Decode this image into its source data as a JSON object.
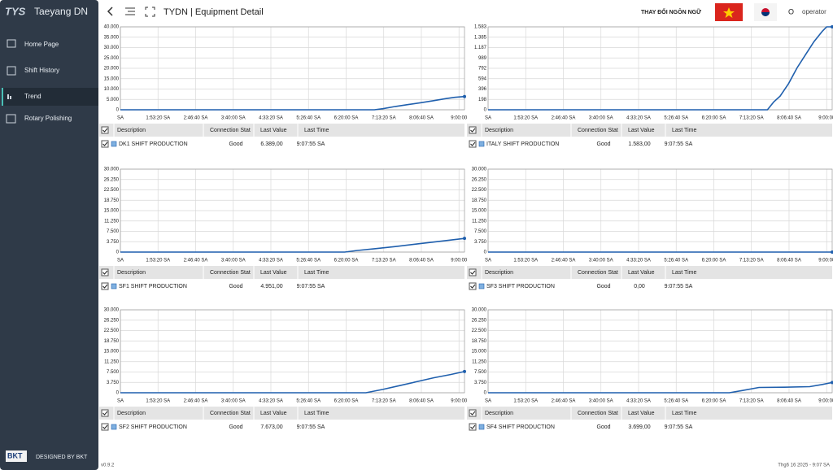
{
  "app": {
    "logo": "TYS",
    "title": "Taeyang DN",
    "nav": [
      "Home Page",
      "Shift History",
      "Trend",
      "Rotary Polishing"
    ],
    "footer_logo": "BKT",
    "footer": "DESIGNED BY BKT",
    "version": "v0.9.2"
  },
  "header": {
    "title": "TYDN | Equipment Detail",
    "language": "THAY ĐỔI NGÔN NGỮ",
    "user_icon": "O",
    "user": "operator"
  },
  "status": "Thg6 16 2025 - 9:07 SA",
  "table_headers": [
    "Description",
    "Connection Stat",
    "Last Value",
    "Last Time"
  ],
  "tables": [
    {
      "row": [
        "Good",
        "6.389,00",
        "9:07:55 SA"
      ]
    },
    {
      "row": [
        "Good",
        "1.583,00",
        "9:07:55 SA"
      ]
    },
    {
      "row": [
        "Good",
        "4.951,00",
        "9:07:55 SA"
      ]
    },
    {
      "row": [
        "Good",
        "0,00",
        "9:07:55 SA"
      ]
    },
    {
      "row": [
        "Good",
        "7.673,00",
        "9:07:55 SA"
      ]
    },
    {
      "row": [
        "Good",
        "3.699,00",
        "9:07:55 SA"
      ]
    }
  ],
  "chart_data": [
    {
      "type": "line",
      "grid": true,
      "xlim": [
        1,
        9.13
      ],
      "ylim": [
        0,
        40000
      ],
      "xticks": [
        {
          "value": 1,
          "label": "SA"
        },
        {
          "value": 1.8889,
          "label": "1:53:20 SA"
        },
        {
          "value": 2.7778,
          "label": "2:46:40 SA"
        },
        {
          "value": 3.6667,
          "label": "3:40:00 SA"
        },
        {
          "value": 4.5556,
          "label": "4:33:20 SA"
        },
        {
          "value": 5.4444,
          "label": "5:26:40 SA"
        },
        {
          "value": 6.3333,
          "label": "6:20:00 SA"
        },
        {
          "value": 7.2222,
          "label": "7:13:20 SA"
        },
        {
          "value": 8.1111,
          "label": "8:06:40 SA"
        },
        {
          "value": 9,
          "label": "9:00:00"
        }
      ],
      "yticks": [
        0,
        {
          "value": 5000,
          "label": "5.000"
        },
        {
          "value": 10000,
          "label": "10.000"
        },
        {
          "value": 15000,
          "label": "15.000"
        },
        {
          "value": 20000,
          "label": "20.000"
        },
        {
          "value": 25000,
          "label": "25.000"
        },
        {
          "value": 30000,
          "label": "30.000"
        },
        {
          "value": 35000,
          "label": "35.000"
        },
        {
          "value": 40000,
          "label": "40.000"
        }
      ],
      "series": [
        {
          "name": "DK1 SHIFT PRODUCTION",
          "color": "#1f5fad",
          "x": [
            1,
            7.0,
            7.2,
            7.5,
            7.8,
            8.1,
            8.4,
            8.7,
            8.9,
            9.13
          ],
          "values": [
            0,
            0,
            500,
            1600,
            2500,
            3400,
            4400,
            5400,
            6000,
            6389
          ]
        }
      ]
    },
    {
      "type": "line",
      "grid": true,
      "xlim": [
        1,
        9.13
      ],
      "ylim": [
        0,
        1583
      ],
      "xticks": [
        {
          "value": 1,
          "label": "SA"
        },
        {
          "value": 1.8889,
          "label": "1:53:20 SA"
        },
        {
          "value": 2.7778,
          "label": "2:46:40 SA"
        },
        {
          "value": 3.6667,
          "label": "3:40:00 SA"
        },
        {
          "value": 4.5556,
          "label": "4:33:20 SA"
        },
        {
          "value": 5.4444,
          "label": "5:26:40 SA"
        },
        {
          "value": 6.3333,
          "label": "6:20:00 SA"
        },
        {
          "value": 7.2222,
          "label": "7:13:20 SA"
        },
        {
          "value": 8.1111,
          "label": "8:06:40 SA"
        },
        {
          "value": 9,
          "label": "9:00:00"
        }
      ],
      "yticks": [
        0,
        198,
        396,
        594,
        792,
        989,
        {
          "value": 1187,
          "label": "1.187"
        },
        {
          "value": 1385,
          "label": "1.385"
        },
        {
          "value": 1583,
          "label": "1.583"
        }
      ],
      "series": [
        {
          "name": "ITALY SHIFT PRODUCTION",
          "color": "#1f5fad",
          "x": [
            1,
            7.6,
            7.75,
            7.9,
            8.1,
            8.3,
            8.5,
            8.7,
            8.9,
            9.0,
            9.13
          ],
          "values": [
            0,
            0,
            150,
            260,
            500,
            800,
            1050,
            1300,
            1500,
            1583,
            1583
          ]
        }
      ]
    },
    {
      "type": "line",
      "grid": true,
      "xlim": [
        1,
        9.13
      ],
      "ylim": [
        0,
        30000
      ],
      "xticks": [
        {
          "value": 1,
          "label": "SA"
        },
        {
          "value": 1.8889,
          "label": "1:53:20 SA"
        },
        {
          "value": 2.7778,
          "label": "2:46:40 SA"
        },
        {
          "value": 3.6667,
          "label": "3:40:00 SA"
        },
        {
          "value": 4.5556,
          "label": "4:33:20 SA"
        },
        {
          "value": 5.4444,
          "label": "5:26:40 SA"
        },
        {
          "value": 6.3333,
          "label": "6:20:00 SA"
        },
        {
          "value": 7.2222,
          "label": "7:13:20 SA"
        },
        {
          "value": 8.1111,
          "label": "8:06:40 SA"
        },
        {
          "value": 9,
          "label": "9:00:00"
        }
      ],
      "yticks": [
        0,
        {
          "value": 3750,
          "label": "3.750"
        },
        {
          "value": 7500,
          "label": "7.500"
        },
        {
          "value": 11250,
          "label": "11.250"
        },
        {
          "value": 15000,
          "label": "15.000"
        },
        {
          "value": 18750,
          "label": "18.750"
        },
        {
          "value": 22500,
          "label": "22.500"
        },
        {
          "value": 26250,
          "label": "26.250"
        },
        {
          "value": 30000,
          "label": "30.000"
        }
      ],
      "series": [
        {
          "name": "SF1 SHIFT PRODUCTION",
          "color": "#1f5fad",
          "x": [
            1,
            6.3,
            6.6,
            7.0,
            7.5,
            8.0,
            8.5,
            9.13
          ],
          "values": [
            0,
            0,
            600,
            1200,
            2000,
            2900,
            3800,
            4951
          ]
        }
      ]
    },
    {
      "type": "line",
      "grid": true,
      "xlim": [
        1,
        9.13
      ],
      "ylim": [
        0,
        30000
      ],
      "xticks": [
        {
          "value": 1,
          "label": "SA"
        },
        {
          "value": 1.8889,
          "label": "1:53:20 SA"
        },
        {
          "value": 2.7778,
          "label": "2:46:40 SA"
        },
        {
          "value": 3.6667,
          "label": "3:40:00 SA"
        },
        {
          "value": 4.5556,
          "label": "4:33:20 SA"
        },
        {
          "value": 5.4444,
          "label": "5:26:40 SA"
        },
        {
          "value": 6.3333,
          "label": "6:20:00 SA"
        },
        {
          "value": 7.2222,
          "label": "7:13:20 SA"
        },
        {
          "value": 8.1111,
          "label": "8:06:40 SA"
        },
        {
          "value": 9,
          "label": "9:00:00"
        }
      ],
      "yticks": [
        0,
        {
          "value": 3750,
          "label": "3.750"
        },
        {
          "value": 7500,
          "label": "7.500"
        },
        {
          "value": 11250,
          "label": "11.250"
        },
        {
          "value": 15000,
          "label": "15.000"
        },
        {
          "value": 18750,
          "label": "18.750"
        },
        {
          "value": 22500,
          "label": "22.500"
        },
        {
          "value": 26250,
          "label": "26.250"
        },
        {
          "value": 30000,
          "label": "30.000"
        }
      ],
      "series": [
        {
          "name": "SF3 SHIFT PRODUCTION",
          "color": "#1f5fad",
          "x": [
            1,
            9.13
          ],
          "values": [
            0,
            0
          ]
        }
      ]
    },
    {
      "type": "line",
      "grid": true,
      "xlim": [
        1,
        9.13
      ],
      "ylim": [
        0,
        30000
      ],
      "xticks": [
        {
          "value": 1,
          "label": "SA"
        },
        {
          "value": 1.8889,
          "label": "1:53:20 SA"
        },
        {
          "value": 2.7778,
          "label": "2:46:40 SA"
        },
        {
          "value": 3.6667,
          "label": "3:40:00 SA"
        },
        {
          "value": 4.5556,
          "label": "4:33:20 SA"
        },
        {
          "value": 5.4444,
          "label": "5:26:40 SA"
        },
        {
          "value": 6.3333,
          "label": "6:20:00 SA"
        },
        {
          "value": 7.2222,
          "label": "7:13:20 SA"
        },
        {
          "value": 8.1111,
          "label": "8:06:40 SA"
        },
        {
          "value": 9,
          "label": "9:00:00"
        }
      ],
      "yticks": [
        0,
        {
          "value": 3750,
          "label": "3.750"
        },
        {
          "value": 7500,
          "label": "7.500"
        },
        {
          "value": 11250,
          "label": "11.250"
        },
        {
          "value": 15000,
          "label": "15.000"
        },
        {
          "value": 18750,
          "label": "18.750"
        },
        {
          "value": 22500,
          "label": "22.500"
        },
        {
          "value": 26250,
          "label": "26.250"
        },
        {
          "value": 30000,
          "label": "30.000"
        }
      ],
      "series": [
        {
          "name": "SF2 SHIFT PRODUCTION",
          "color": "#1f5fad",
          "x": [
            1,
            6.8,
            7.2,
            7.6,
            8.0,
            8.4,
            8.8,
            9.13
          ],
          "values": [
            0,
            0,
            1200,
            2600,
            4000,
            5400,
            6600,
            7673
          ]
        }
      ]
    },
    {
      "type": "line",
      "grid": true,
      "xlim": [
        1,
        9.13
      ],
      "ylim": [
        0,
        30000
      ],
      "xticks": [
        {
          "value": 1,
          "label": "SA"
        },
        {
          "value": 1.8889,
          "label": "1:53:20 SA"
        },
        {
          "value": 2.7778,
          "label": "2:46:40 SA"
        },
        {
          "value": 3.6667,
          "label": "3:40:00 SA"
        },
        {
          "value": 4.5556,
          "label": "4:33:20 SA"
        },
        {
          "value": 5.4444,
          "label": "5:26:40 SA"
        },
        {
          "value": 6.3333,
          "label": "6:20:00 SA"
        },
        {
          "value": 7.2222,
          "label": "7:13:20 SA"
        },
        {
          "value": 8.1111,
          "label": "8:06:40 SA"
        },
        {
          "value": 9,
          "label": "9:00:00"
        }
      ],
      "yticks": [
        0,
        {
          "value": 3750,
          "label": "3.750"
        },
        {
          "value": 7500,
          "label": "7.500"
        },
        {
          "value": 11250,
          "label": "11.250"
        },
        {
          "value": 15000,
          "label": "15.000"
        },
        {
          "value": 18750,
          "label": "18.750"
        },
        {
          "value": 22500,
          "label": "22.500"
        },
        {
          "value": 26250,
          "label": "26.250"
        },
        {
          "value": 30000,
          "label": "30.000"
        }
      ],
      "series": [
        {
          "name": "SF4 SHIFT PRODUCTION",
          "color": "#1f5fad",
          "x": [
            1,
            6.7,
            7.0,
            7.4,
            8.0,
            8.6,
            8.9,
            9.13
          ],
          "values": [
            0,
            0,
            800,
            1900,
            2000,
            2200,
            3000,
            3699
          ]
        }
      ]
    }
  ]
}
